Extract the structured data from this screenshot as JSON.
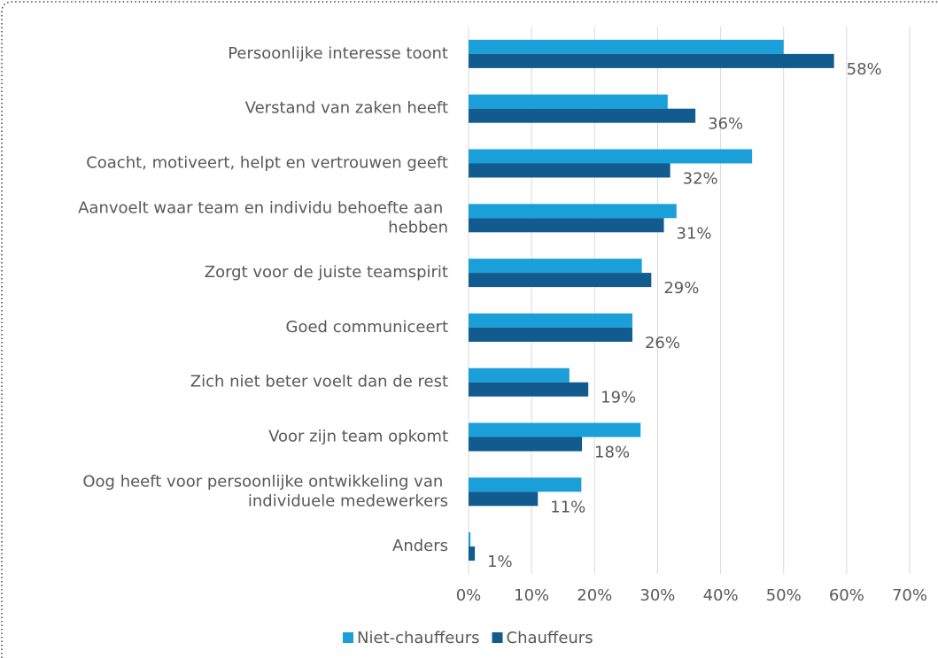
{
  "chart_data": {
    "type": "bar",
    "orientation": "horizontal",
    "categories": [
      "Persoonlijke interesse toont",
      "Verstand van zaken heeft",
      "Coacht, motiveert, helpt en vertrouwen geeft",
      "Aanvoelt waar team en individu behoefte aan hebben",
      "Zorgt voor de juiste teamspirit",
      "Goed communiceert",
      "Zich niet beter voelt dan de rest",
      "Voor zijn team opkomt",
      "Oog heeft voor persoonlijke ontwikkeling van individuele medewerkers",
      "Anders"
    ],
    "series": [
      {
        "name": "Niet-chauffeurs",
        "color": "#1b9fd8",
        "values": [
          50,
          31.6,
          45,
          33,
          27.5,
          26,
          16,
          27.3,
          17.9,
          0.3
        ]
      },
      {
        "name": "Chauffeurs",
        "color": "#115b8e",
        "values": [
          58,
          36,
          32,
          31,
          29,
          26,
          19,
          18,
          11,
          1
        ],
        "value_labels": [
          "58%",
          "36%",
          "32%",
          "31%",
          "29%",
          "26%",
          "19%",
          "18%",
          "11%",
          "1%"
        ]
      }
    ],
    "xlim": [
      0,
      70
    ],
    "xticks": [
      {
        "value": 0,
        "label": "0%"
      },
      {
        "value": 10,
        "label": "10%"
      },
      {
        "value": 20,
        "label": "20%"
      },
      {
        "value": 30,
        "label": "30%"
      },
      {
        "value": 40,
        "label": "40%"
      },
      {
        "value": 50,
        "label": "50%"
      },
      {
        "value": 60,
        "label": "60%"
      },
      {
        "value": 70,
        "label": "70%"
      }
    ],
    "grid": true,
    "legend": "bottom"
  }
}
